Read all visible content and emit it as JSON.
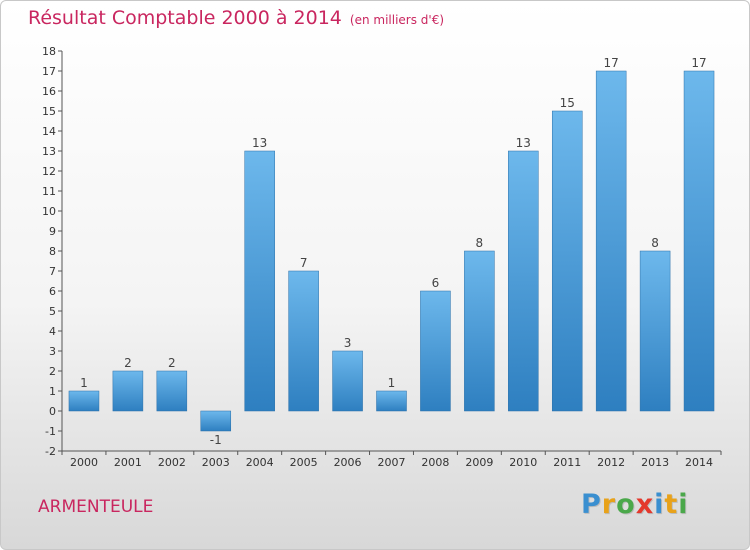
{
  "title": "Résultat Comptable 2000 à 2014",
  "subtitle": "(en milliers d'€)",
  "location": "ARMENTEULE",
  "logo": {
    "text": "Proxiti",
    "colors": [
      "#3a8fd0",
      "#e8a21a",
      "#4aa84a",
      "#e4382c",
      "#3a8fd0",
      "#e8a21a",
      "#4aa84a"
    ]
  },
  "colors": {
    "bar_top": "#6db8ec",
    "bar_bottom": "#2e7fc0",
    "title": "#c9265f"
  },
  "chart_data": {
    "type": "bar",
    "categories": [
      "2000",
      "2001",
      "2002",
      "2003",
      "2004",
      "2005",
      "2006",
      "2007",
      "2008",
      "2009",
      "2010",
      "2011",
      "2012",
      "2013",
      "2014"
    ],
    "values": [
      1,
      2,
      2,
      -1,
      13,
      7,
      3,
      1,
      6,
      8,
      13,
      15,
      17,
      8,
      17
    ],
    "ylim": [
      -2,
      18
    ],
    "yticks": [
      -2,
      -1,
      0,
      1,
      2,
      3,
      4,
      5,
      6,
      7,
      8,
      9,
      10,
      11,
      12,
      13,
      14,
      15,
      16,
      17,
      18
    ],
    "grid": false
  }
}
